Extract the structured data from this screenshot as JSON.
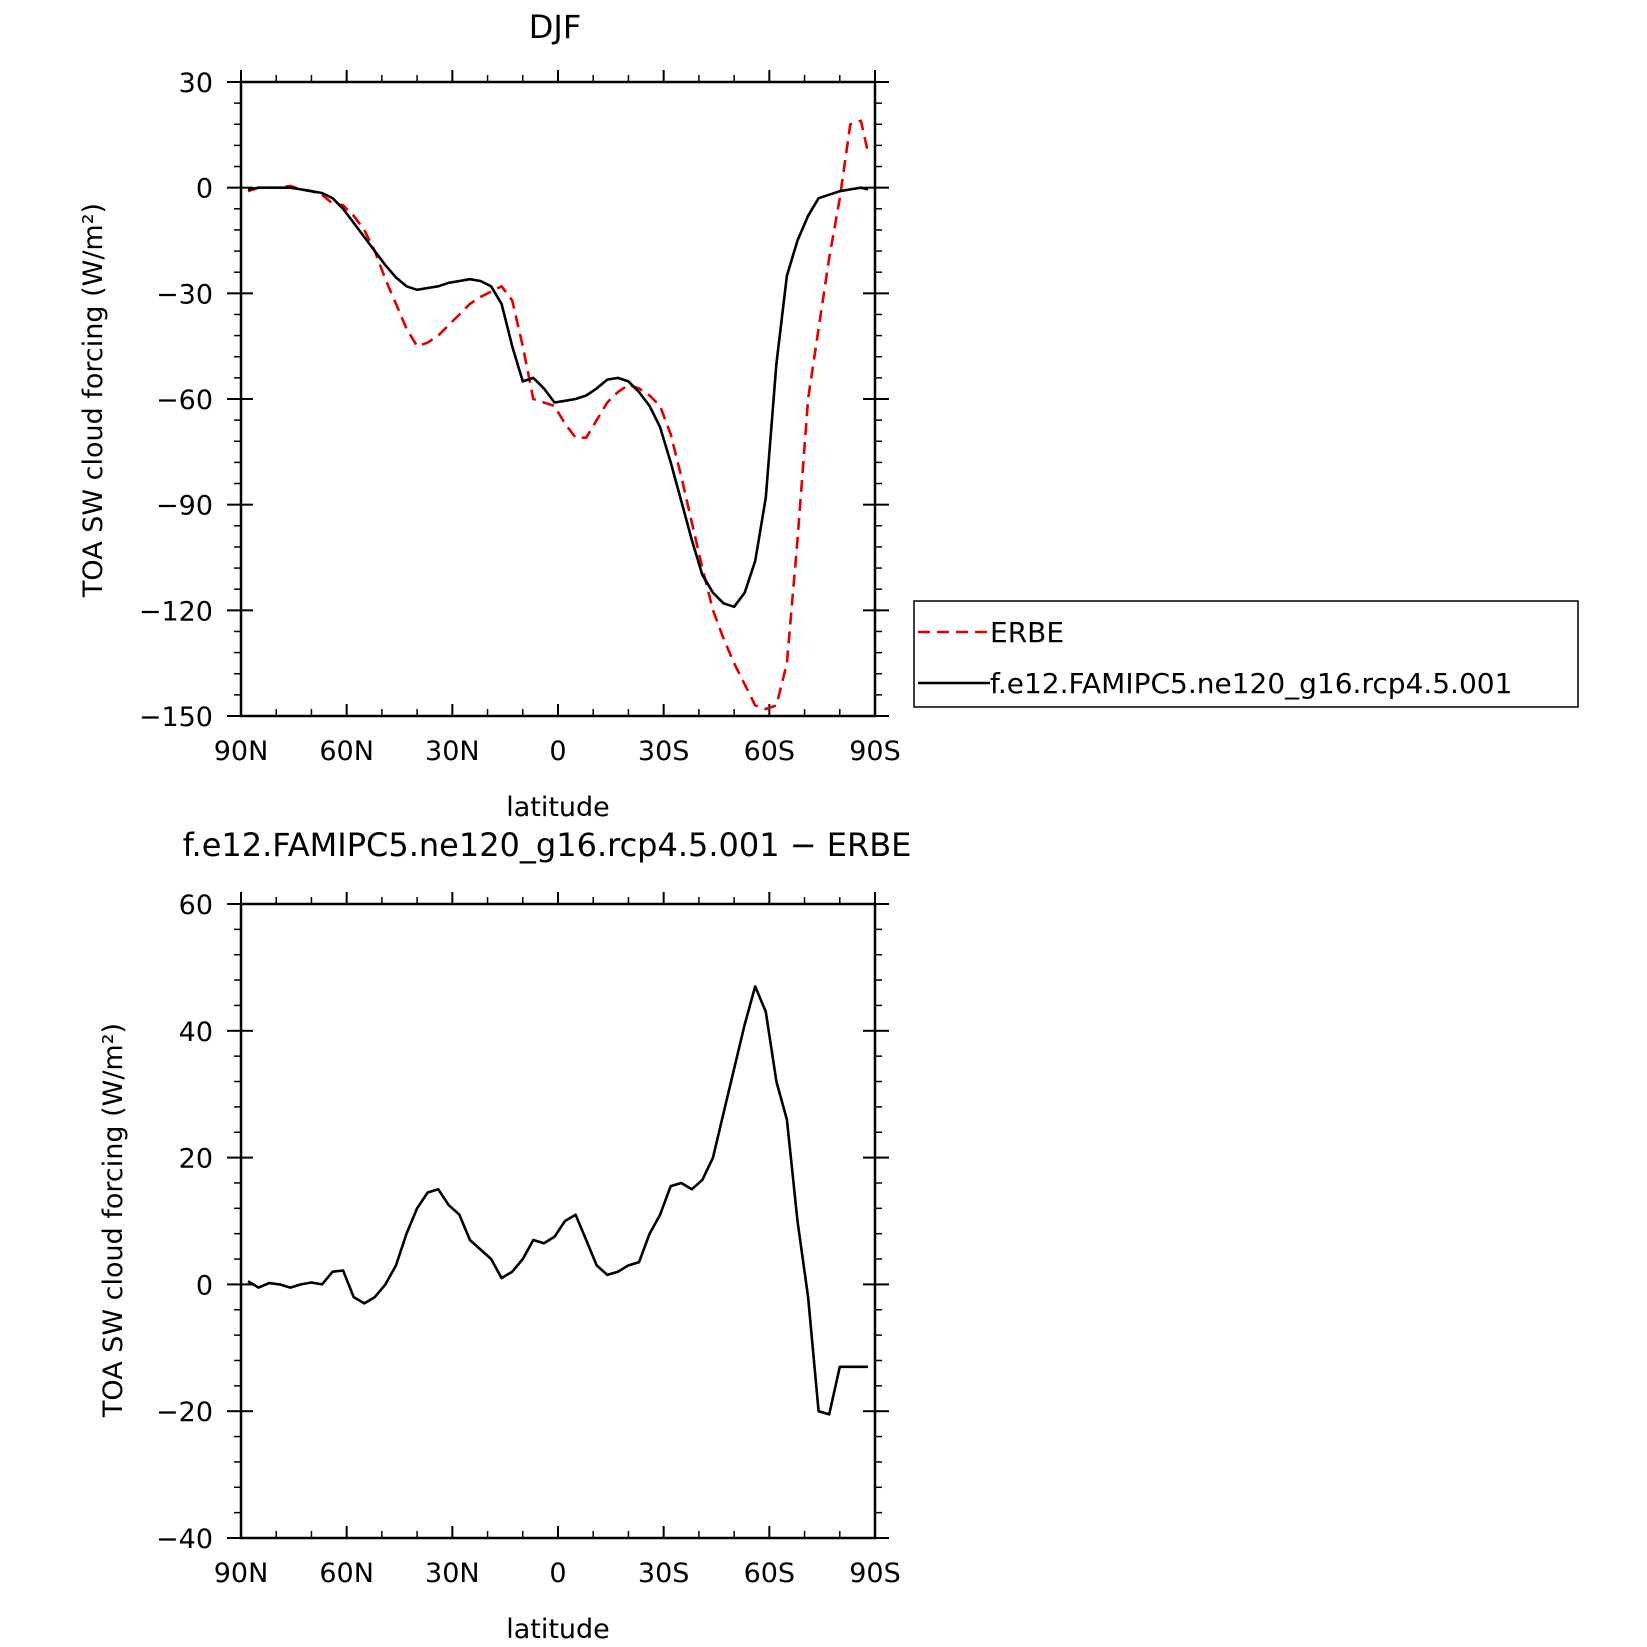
{
  "chart_data": [
    {
      "type": "line",
      "title": "DJF",
      "xlabel": "latitude",
      "ylabel": "TOA SW cloud forcing (W/m²)",
      "xlim": [
        90,
        -90
      ],
      "ylim": [
        -150,
        30
      ],
      "xticks": [
        90,
        60,
        30,
        0,
        -30,
        -60,
        -90
      ],
      "xtick_labels": [
        "90N",
        "60N",
        "30N",
        "0",
        "30S",
        "60S",
        "90S"
      ],
      "yticks": [
        30,
        0,
        -30,
        -60,
        -90,
        -120,
        -150
      ],
      "ytick_labels": [
        "30",
        "0",
        "−30",
        "−60",
        "−90",
        "−120",
        "−150"
      ],
      "legend_position": "right",
      "series": [
        {
          "name": "ERBE",
          "color": "#e00000",
          "dash": "dashed",
          "x": [
            88,
            85,
            82,
            79,
            76,
            73,
            70,
            67,
            64,
            61,
            58,
            55,
            52,
            49,
            46,
            43,
            40,
            37,
            34,
            31,
            28,
            25,
            22,
            19,
            16,
            13,
            10,
            7,
            4,
            1,
            -2,
            -5,
            -8,
            -11,
            -14,
            -17,
            -20,
            -23,
            -26,
            -29,
            -32,
            -35,
            -38,
            -41,
            -44,
            -47,
            -50,
            -53,
            -56,
            -59,
            -62,
            -65,
            -68,
            -71,
            -74,
            -77,
            -80,
            -83,
            -86,
            -88
          ],
          "values": [
            -1,
            0,
            0,
            0,
            0.5,
            -0.5,
            -1,
            -2,
            -4.5,
            -5,
            -8,
            -12,
            -18,
            -26,
            -33,
            -40,
            -45,
            -44,
            -42,
            -39,
            -36,
            -33,
            -31,
            -29.5,
            -28,
            -32,
            -45,
            -60,
            -61,
            -62,
            -67,
            -71,
            -71,
            -66,
            -61,
            -58,
            -56,
            -57,
            -59,
            -62,
            -70,
            -82,
            -95,
            -108,
            -120,
            -128,
            -135,
            -141,
            -147,
            -148,
            -147,
            -135,
            -100,
            -60,
            -40,
            -20,
            -3,
            18,
            19,
            10
          ]
        },
        {
          "name": "f.e12.FAMIPC5.ne120_g16.rcp4.5.001",
          "color": "#000000",
          "dash": "solid",
          "x": [
            88,
            85,
            82,
            79,
            76,
            73,
            70,
            67,
            64,
            61,
            58,
            55,
            52,
            49,
            46,
            43,
            40,
            37,
            34,
            31,
            28,
            25,
            22,
            19,
            16,
            13,
            10,
            7,
            4,
            1,
            -2,
            -5,
            -8,
            -11,
            -14,
            -17,
            -20,
            -23,
            -26,
            -29,
            -32,
            -35,
            -38,
            -41,
            -44,
            -47,
            -50,
            -53,
            -56,
            -59,
            -62,
            -65,
            -68,
            -71,
            -74,
            -77,
            -80,
            -83,
            -86,
            -88
          ],
          "values": [
            -0.5,
            0,
            0,
            0,
            0,
            -0.5,
            -1,
            -1.5,
            -3,
            -6,
            -10,
            -14,
            -18,
            -22,
            -25.5,
            -28,
            -29,
            -28.5,
            -28,
            -27,
            -26.5,
            -26,
            -26.5,
            -28,
            -33,
            -45,
            -55,
            -54,
            -57,
            -61,
            -60.5,
            -60,
            -59,
            -57,
            -54.5,
            -54,
            -55,
            -58,
            -62,
            -68,
            -78,
            -89,
            -100,
            -110,
            -115,
            -118,
            -119,
            -115,
            -106,
            -88,
            -50,
            -25,
            -15,
            -8,
            -3,
            -2,
            -1,
            -0.5,
            0,
            -0.5
          ]
        }
      ]
    },
    {
      "type": "line",
      "title": "f.e12.FAMIPC5.ne120_g16.rcp4.5.001 − ERBE",
      "xlabel": "latitude",
      "ylabel": "TOA SW cloud forcing (W/m²)",
      "xlim": [
        90,
        -90
      ],
      "ylim": [
        -40,
        60
      ],
      "xticks": [
        90,
        60,
        30,
        0,
        -30,
        -60,
        -90
      ],
      "xtick_labels": [
        "90N",
        "60N",
        "30N",
        "0",
        "30S",
        "60S",
        "90S"
      ],
      "yticks": [
        60,
        40,
        20,
        0,
        -20,
        -40
      ],
      "ytick_labels": [
        "60",
        "40",
        "20",
        "0",
        "−20",
        "−40"
      ],
      "series": [
        {
          "color": "#000000",
          "dash": "solid",
          "x": [
            88,
            85,
            82,
            79,
            76,
            73,
            70,
            67,
            64,
            61,
            58,
            55,
            52,
            49,
            46,
            43,
            40,
            37,
            34,
            31,
            28,
            25,
            22,
            19,
            16,
            13,
            10,
            7,
            4,
            1,
            -2,
            -5,
            -8,
            -11,
            -14,
            -17,
            -20,
            -23,
            -26,
            -29,
            -32,
            -35,
            -38,
            -41,
            -44,
            -47,
            -50,
            -53,
            -56,
            -59,
            -62,
            -65,
            -68,
            -71,
            -74,
            -77,
            -80,
            -83,
            -86,
            -88
          ],
          "values": [
            0.5,
            -0.5,
            0.2,
            0,
            -0.5,
            0,
            0.3,
            0,
            2,
            2.2,
            -2,
            -3,
            -2,
            0,
            3,
            8,
            12,
            14.5,
            15,
            12.5,
            11,
            7,
            5.5,
            4,
            1,
            2,
            4,
            7,
            6.5,
            7.5,
            10,
            11,
            7,
            3,
            1.5,
            2,
            3,
            3.5,
            8,
            11,
            15.5,
            16,
            15,
            16.5,
            20,
            27,
            34,
            41,
            47,
            43,
            32,
            26,
            10,
            -2,
            -20,
            -20.5,
            -13,
            -13,
            -13,
            -13
          ]
        }
      ]
    }
  ]
}
